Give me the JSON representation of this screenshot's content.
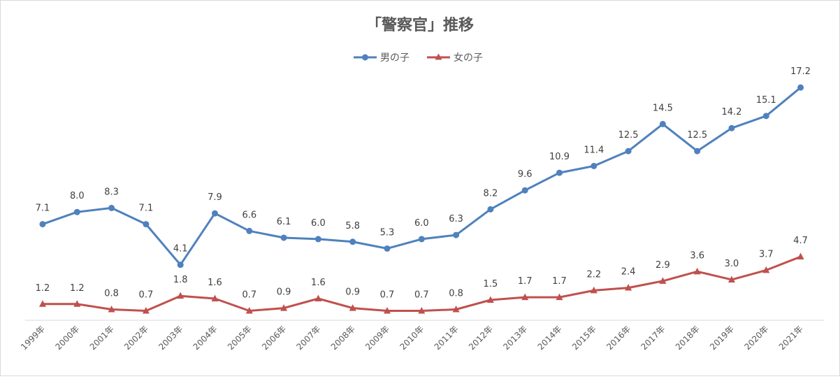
{
  "chart_data": {
    "type": "line",
    "title": "「警察官」推移",
    "categories": [
      "1999年",
      "2000年",
      "2001年",
      "2002年",
      "2003年",
      "2004年",
      "2005年",
      "2006年",
      "2007年",
      "2008年",
      "2009年",
      "2010年",
      "2011年",
      "2012年",
      "2013年",
      "2014年",
      "2015年",
      "2016年",
      "2017年",
      "2018年",
      "2019年",
      "2020年",
      "2021年"
    ],
    "series": [
      {
        "name": "男の子",
        "color": "#4F81BD",
        "marker": "circle",
        "values": [
          7.1,
          8.0,
          8.3,
          7.1,
          4.1,
          7.9,
          6.6,
          6.1,
          6.0,
          5.8,
          5.3,
          6.0,
          6.3,
          8.2,
          9.6,
          10.9,
          11.4,
          12.5,
          14.5,
          12.5,
          14.2,
          15.1,
          17.2
        ],
        "labels": [
          "7.1",
          "8.0",
          "8.3",
          "7.1",
          "4.1",
          "7.9",
          "6.6",
          "6.1",
          "6.0",
          "5.8",
          "5.3",
          "6.0",
          "6.3",
          "8.2",
          "9.6",
          "10.9",
          "11.4",
          "12.5",
          "14.5",
          "12.5",
          "14.2",
          "15.1",
          "17.2"
        ]
      },
      {
        "name": "女の子",
        "color": "#C0504D",
        "marker": "triangle",
        "values": [
          1.2,
          1.2,
          0.8,
          0.7,
          1.8,
          1.6,
          0.7,
          0.9,
          1.6,
          0.9,
          0.7,
          0.7,
          0.8,
          1.5,
          1.7,
          1.7,
          2.2,
          2.4,
          2.9,
          3.6,
          3.0,
          3.7,
          4.7
        ],
        "labels": [
          "1.2",
          "1.2",
          "0.8",
          "0.7",
          "1.8",
          "1.6",
          "0.7",
          "0.9",
          "1.6",
          "0.9",
          "0.7",
          "0.7",
          "0.8",
          "1.5",
          "1.7",
          "1.7",
          "2.2",
          "2.4",
          "2.9",
          "3.6",
          "3.0",
          "3.7",
          "4.7"
        ]
      }
    ],
    "xlabel": "",
    "ylabel": "",
    "ylim": [
      0,
      20
    ],
    "grid": false,
    "legend": "top-center"
  }
}
